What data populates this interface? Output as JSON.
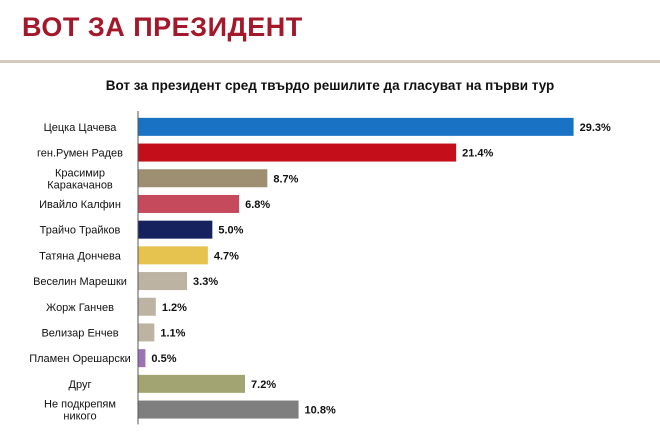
{
  "header": {
    "title": "ВОТ ЗА ПРЕЗИДЕНТ"
  },
  "chart_data": {
    "type": "bar",
    "orientation": "horizontal",
    "title": "Вот за президент сред твърдо решилите да гласуват на първи тур",
    "xlabel": "",
    "ylabel": "",
    "xlim": [
      0,
      30
    ],
    "grid": false,
    "categories": [
      "Цецка Цачева",
      "ген.Румен Радев",
      [
        "Красимир",
        "Каракачанов"
      ],
      "Ивайло Калфин",
      "Трайчо Трайков",
      "Татяна Дончева",
      "Веселин Марешки",
      "Жорж Ганчев",
      "Велизар Енчев",
      "Пламен Орешарски",
      "Друг",
      [
        "Не подкрепям",
        "никого"
      ]
    ],
    "values": [
      29.3,
      21.4,
      8.7,
      6.8,
      5.0,
      4.7,
      3.3,
      1.2,
      1.1,
      0.5,
      7.2,
      10.8
    ],
    "value_labels": [
      "29.3%",
      "21.4%",
      "8.7%",
      "6.8%",
      "5.0%",
      "4.7%",
      "3.3%",
      "1.2%",
      "1.1%",
      "0.5%",
      "7.2%",
      "10.8%"
    ],
    "colors": [
      "#1a72c4",
      "#c40f1a",
      "#9e8e72",
      "#c44a5c",
      "#15225e",
      "#e6c24e",
      "#bdb3a2",
      "#bdb3a2",
      "#bdb3a2",
      "#9c72b4",
      "#a2a472",
      "#7f7f7f"
    ]
  }
}
